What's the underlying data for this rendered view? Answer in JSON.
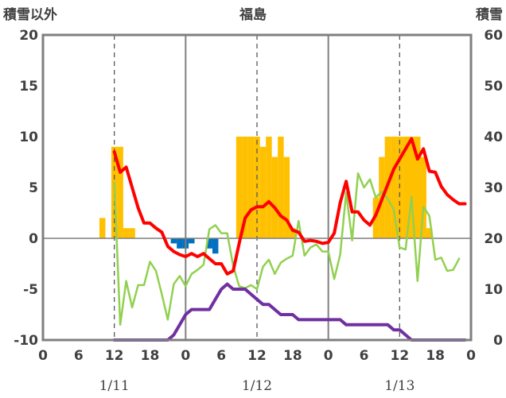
{
  "header": {
    "title": "福島",
    "left_axis_label": "積雪以外",
    "right_axis_label": "積雪"
  },
  "chart_data": {
    "type": "bar+line",
    "title": "福島",
    "ylabel_left": "積雪以外",
    "ylabel_right": "積雪",
    "ylim_left": [
      -10,
      20
    ],
    "ylim_right": [
      0,
      60
    ],
    "yticks_left": [
      "20",
      "15",
      "10",
      "5",
      "0",
      "-5",
      "-10"
    ],
    "yticks_right": [
      "60",
      "50",
      "40",
      "30",
      "20",
      "10",
      "0"
    ],
    "x_hour_range": [
      0,
      72
    ],
    "xtick_labels": [
      "0",
      "6",
      "12",
      "18",
      "0",
      "6",
      "12",
      "18",
      "0",
      "6",
      "12",
      "18",
      "0"
    ],
    "date_labels": [
      {
        "text": "1/11",
        "hour": 12
      },
      {
        "text": "1/12",
        "hour": 36
      },
      {
        "text": "1/13",
        "hour": 60
      }
    ],
    "grid": "dashed vertical lines at 12:00 each day; solid day boundaries",
    "colors": {
      "precip_positive": "#FFC000",
      "precip_negative": "#0070C0",
      "temperature": "#FF0000",
      "wind": "#92D050",
      "snow_depth": "#7030A0",
      "frame": "#7F7F7F"
    },
    "series": [
      {
        "name": "",
        "kind": "bar",
        "axis": "left",
        "points": [
          [
            10,
            2
          ],
          [
            11,
            0
          ],
          [
            12,
            9
          ],
          [
            13,
            9
          ],
          [
            14,
            1
          ],
          [
            15,
            1
          ],
          [
            22,
            -0.5
          ],
          [
            23,
            -1
          ],
          [
            24,
            -1
          ],
          [
            25,
            -0.5
          ],
          [
            26,
            0
          ],
          [
            27,
            0
          ],
          [
            28,
            -1
          ],
          [
            29,
            -1.5
          ],
          [
            33,
            10
          ],
          [
            34,
            10
          ],
          [
            35,
            10
          ],
          [
            36,
            10
          ],
          [
            37,
            9
          ],
          [
            38,
            10
          ],
          [
            39,
            8
          ],
          [
            40,
            10
          ],
          [
            41,
            8
          ],
          [
            42,
            1
          ],
          [
            56,
            4
          ],
          [
            57,
            8
          ],
          [
            58,
            10
          ],
          [
            59,
            10
          ],
          [
            60,
            10
          ],
          [
            61,
            10
          ],
          [
            62,
            10
          ],
          [
            63,
            10
          ],
          [
            64,
            8
          ],
          [
            65,
            1
          ]
        ]
      },
      {
        "name": "",
        "kind": "line",
        "axis": "left",
        "points": [
          [
            12,
            8.5
          ],
          [
            13,
            6.5
          ],
          [
            14,
            7
          ],
          [
            15,
            5
          ],
          [
            16,
            3
          ],
          [
            17,
            1.5
          ],
          [
            18,
            1.5
          ],
          [
            19,
            1
          ],
          [
            20,
            0.6
          ],
          [
            21,
            -0.8
          ],
          [
            22,
            -1.3
          ],
          [
            23,
            -1.6
          ],
          [
            24,
            -1.8
          ],
          [
            25,
            -1.5
          ],
          [
            26,
            -1.8
          ],
          [
            27,
            -1.5
          ],
          [
            28,
            -2
          ],
          [
            29,
            -2.5
          ],
          [
            30,
            -2.5
          ],
          [
            31,
            -3.5
          ],
          [
            32,
            -3.2
          ],
          [
            33,
            -0.5
          ],
          [
            34,
            2
          ],
          [
            35,
            2.8
          ],
          [
            36,
            3.1
          ],
          [
            37,
            3.1
          ],
          [
            38,
            3.6
          ],
          [
            39,
            3
          ],
          [
            40,
            2.2
          ],
          [
            41,
            1.8
          ],
          [
            42,
            0.8
          ],
          [
            43,
            0.6
          ],
          [
            44,
            -0.3
          ],
          [
            45,
            -0.2
          ],
          [
            46,
            -0.3
          ],
          [
            47,
            -0.5
          ],
          [
            48,
            -0.4
          ],
          [
            49,
            0.5
          ],
          [
            50,
            3.5
          ],
          [
            51,
            5.6
          ],
          [
            52,
            2.6
          ],
          [
            53,
            2.6
          ],
          [
            54,
            1.8
          ],
          [
            55,
            1.3
          ],
          [
            56,
            2.3
          ],
          [
            57,
            3.8
          ],
          [
            58,
            5.3
          ],
          [
            59,
            6.8
          ],
          [
            60,
            7.8
          ],
          [
            61,
            8.8
          ],
          [
            62,
            9.8
          ],
          [
            63,
            7.8
          ],
          [
            64,
            8.8
          ],
          [
            65,
            6.6
          ],
          [
            66,
            6.5
          ],
          [
            67,
            5.1
          ],
          [
            68,
            4.3
          ],
          [
            69,
            3.8
          ],
          [
            70,
            3.4
          ],
          [
            71,
            3.4
          ]
        ]
      },
      {
        "name": "",
        "kind": "line",
        "axis": "left",
        "points": [
          [
            12,
            5.5
          ],
          [
            13,
            -8.5
          ],
          [
            14,
            -4.2
          ],
          [
            15,
            -6.8
          ],
          [
            16,
            -4.6
          ],
          [
            17,
            -4.6
          ],
          [
            18,
            -2.3
          ],
          [
            19,
            -3.2
          ],
          [
            20,
            -5.5
          ],
          [
            21,
            -8
          ],
          [
            22,
            -4.5
          ],
          [
            23,
            -3.7
          ],
          [
            24,
            -4.7
          ],
          [
            25,
            -3.5
          ],
          [
            26,
            -3.1
          ],
          [
            27,
            -2.6
          ],
          [
            28,
            0.9
          ],
          [
            29,
            1.3
          ],
          [
            30,
            0.5
          ],
          [
            31,
            0.5
          ],
          [
            32,
            -2.7
          ],
          [
            33,
            -4.7
          ],
          [
            34,
            -4.9
          ],
          [
            35,
            -4.6
          ],
          [
            36,
            -5
          ],
          [
            37,
            -2.8
          ],
          [
            38,
            -2.1
          ],
          [
            39,
            -3.5
          ],
          [
            40,
            -2.4
          ],
          [
            41,
            -2
          ],
          [
            42,
            -1.7
          ],
          [
            43,
            1.7
          ],
          [
            44,
            -1.7
          ],
          [
            45,
            -0.9
          ],
          [
            46,
            -0.6
          ],
          [
            47,
            -1.3
          ],
          [
            48,
            -1.3
          ],
          [
            49,
            -4
          ],
          [
            50,
            -1.6
          ],
          [
            51,
            4.5
          ],
          [
            52,
            -0.2
          ],
          [
            53,
            6.4
          ],
          [
            54,
            5
          ],
          [
            55,
            5.8
          ],
          [
            56,
            4
          ],
          [
            57,
            4.6
          ],
          [
            58,
            3.9
          ],
          [
            59,
            2.8
          ],
          [
            60,
            -0.9
          ],
          [
            61,
            -1.1
          ],
          [
            62,
            4.1
          ],
          [
            63,
            -4.2
          ],
          [
            64,
            3.1
          ],
          [
            65,
            2.2
          ],
          [
            66,
            -2.1
          ],
          [
            67,
            -1.9
          ],
          [
            68,
            -3.2
          ],
          [
            69,
            -3.1
          ],
          [
            70,
            -2
          ]
        ]
      },
      {
        "name": "",
        "kind": "line",
        "axis": "right",
        "points": [
          [
            12,
            0
          ],
          [
            21,
            0
          ],
          [
            22,
            1
          ],
          [
            23,
            3
          ],
          [
            24,
            5
          ],
          [
            25,
            6
          ],
          [
            26,
            6
          ],
          [
            27,
            6
          ],
          [
            28,
            6
          ],
          [
            29,
            8
          ],
          [
            30,
            10
          ],
          [
            31,
            11
          ],
          [
            32,
            10
          ],
          [
            33,
            10
          ],
          [
            34,
            10
          ],
          [
            35,
            9
          ],
          [
            36,
            8
          ],
          [
            37,
            7
          ],
          [
            38,
            7
          ],
          [
            39,
            6
          ],
          [
            40,
            5
          ],
          [
            41,
            5
          ],
          [
            42,
            5
          ],
          [
            43,
            4
          ],
          [
            44,
            4
          ],
          [
            45,
            4
          ],
          [
            46,
            4
          ],
          [
            47,
            4
          ],
          [
            48,
            4
          ],
          [
            49,
            4
          ],
          [
            50,
            4
          ],
          [
            51,
            3
          ],
          [
            52,
            3
          ],
          [
            53,
            3
          ],
          [
            54,
            3
          ],
          [
            55,
            3
          ],
          [
            56,
            3
          ],
          [
            57,
            3
          ],
          [
            58,
            3
          ],
          [
            59,
            2
          ],
          [
            60,
            2
          ],
          [
            61,
            1
          ],
          [
            62,
            0
          ],
          [
            63,
            0
          ],
          [
            64,
            0
          ],
          [
            70,
            0
          ],
          [
            71,
            0
          ]
        ]
      }
    ]
  }
}
